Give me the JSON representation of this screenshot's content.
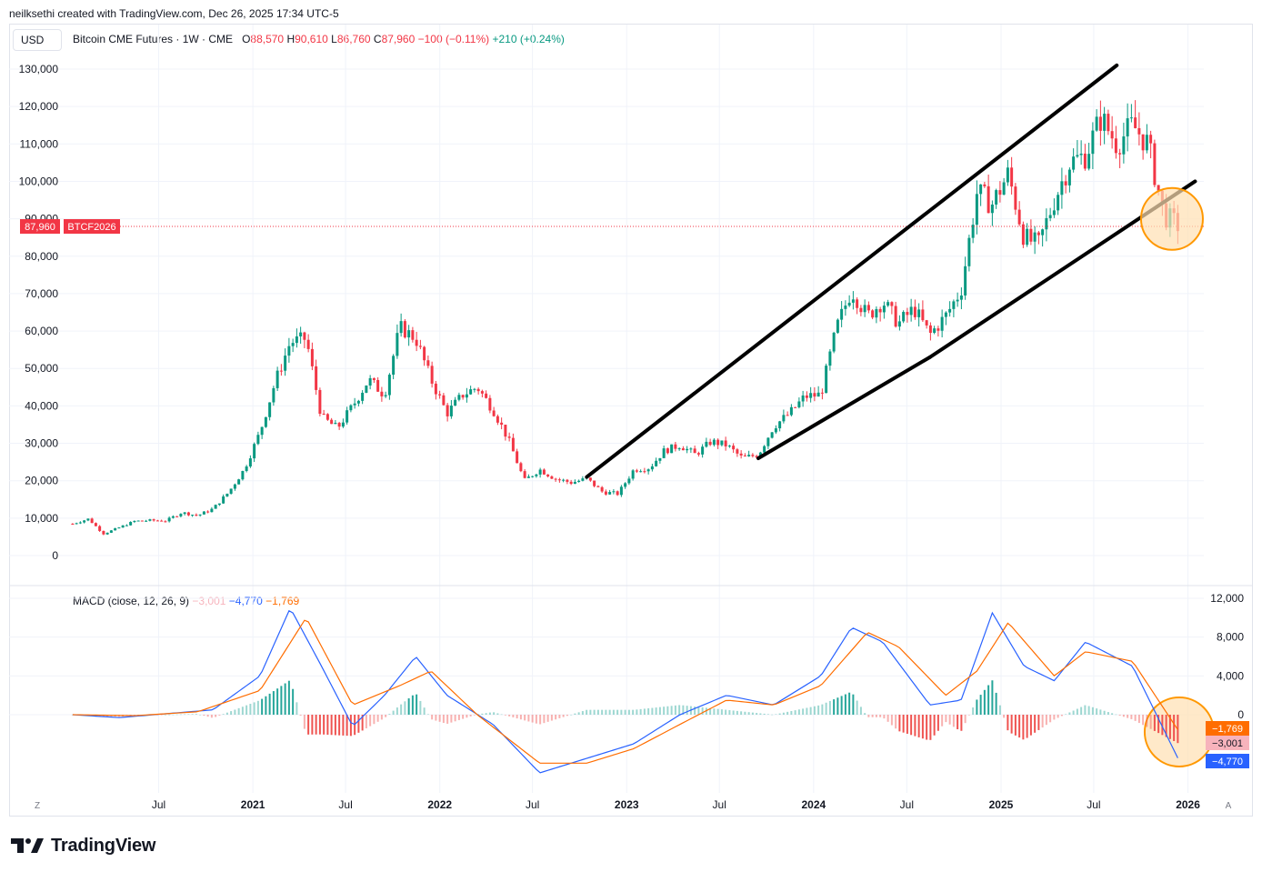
{
  "header": {
    "credit": "neilksethi created with TradingView.com, Dec 26, 2025 17:34 UTC-5"
  },
  "toolbar": {
    "currency": "USD",
    "corner_left": "Z",
    "corner_right": "A"
  },
  "legend": {
    "title": "Bitcoin CME Futures · 1W · CME",
    "o_label": "O",
    "o_value": "88,570",
    "h_label": "H",
    "h_value": "90,610",
    "l_label": "L",
    "l_value": "86,760",
    "c_label": "C",
    "c_value": "87,960",
    "change": "−100 (−0.11%)",
    "change2": "+210 (+0.24%)"
  },
  "macd_legend": {
    "title": "MACD (close, 12, 26, 9)",
    "hist": "−3,001",
    "macd": "−4,770",
    "signal": "−1,769"
  },
  "footer": {
    "brand": "TradingView"
  },
  "colors": {
    "up": "#089981",
    "down": "#f23645",
    "macd": "#2962ff",
    "signal": "#ff6d00",
    "hist_up": "#26a69a",
    "hist_down": "#ef5350",
    "highlight": "#ffe0b2",
    "highlight_border": "#ff9800"
  },
  "chart_data": [
    {
      "type": "candlestick",
      "title": "Bitcoin CME Futures · 1W · CME",
      "ylim": [
        -5000,
        138000
      ],
      "y_ticks": [
        0,
        10000,
        20000,
        30000,
        40000,
        50000,
        60000,
        70000,
        80000,
        90000,
        100000,
        110000,
        120000,
        130000
      ],
      "y_tick_labels": [
        "0",
        "10,000",
        "20,000",
        "30,000",
        "40,000",
        "50,000",
        "60,000",
        "70,000",
        "80,000",
        "90,000",
        "100,000",
        "110,000",
        "120,000",
        "130,000"
      ],
      "last_price": 87960,
      "last_price_label": "87,960",
      "symbol_label": "BTCF2026",
      "x_labels": [
        {
          "date": "2020-07",
          "label": "Jul"
        },
        {
          "date": "2021-01",
          "label": "2021"
        },
        {
          "date": "2021-07",
          "label": "Jul"
        },
        {
          "date": "2022-01",
          "label": "2022"
        },
        {
          "date": "2022-07",
          "label": "Jul"
        },
        {
          "date": "2023-01",
          "label": "2023"
        },
        {
          "date": "2023-07",
          "label": "Jul"
        },
        {
          "date": "2024-01",
          "label": "2024"
        },
        {
          "date": "2024-07",
          "label": "Jul"
        },
        {
          "date": "2025-01",
          "label": "2025"
        },
        {
          "date": "2025-07",
          "label": "Jul"
        },
        {
          "date": "2026-01",
          "label": "2026"
        }
      ],
      "price_path": [
        [
          "2020-01",
          8500
        ],
        [
          "2020-02",
          9800
        ],
        [
          "2020-03",
          5800
        ],
        [
          "2020-04",
          7500
        ],
        [
          "2020-05",
          9200
        ],
        [
          "2020-06",
          9400
        ],
        [
          "2020-07",
          9300
        ],
        [
          "2020-08",
          11500
        ],
        [
          "2020-09",
          10700
        ],
        [
          "2020-10",
          12500
        ],
        [
          "2020-11",
          17000
        ],
        [
          "2020-12",
          23000
        ],
        [
          "2021-01",
          33000
        ],
        [
          "2021-02",
          47000
        ],
        [
          "2021-03",
          57000
        ],
        [
          "2021-04",
          58000
        ],
        [
          "2021-05",
          37000
        ],
        [
          "2021-06",
          34000
        ],
        [
          "2021-07",
          40000
        ],
        [
          "2021-08",
          47000
        ],
        [
          "2021-09",
          43000
        ],
        [
          "2021-10",
          61000
        ],
        [
          "2021-11",
          58000
        ],
        [
          "2021-12",
          47000
        ],
        [
          "2022-01",
          38000
        ],
        [
          "2022-02",
          43000
        ],
        [
          "2022-03",
          45000
        ],
        [
          "2022-04",
          39000
        ],
        [
          "2022-05",
          31000
        ],
        [
          "2022-06",
          20000
        ],
        [
          "2022-07",
          23000
        ],
        [
          "2022-08",
          20500
        ],
        [
          "2022-09",
          19500
        ],
        [
          "2022-10",
          20500
        ],
        [
          "2022-11",
          17000
        ],
        [
          "2022-12",
          16500
        ],
        [
          "2023-01",
          23000
        ],
        [
          "2023-02",
          23500
        ],
        [
          "2023-03",
          28000
        ],
        [
          "2023-04",
          29500
        ],
        [
          "2023-05",
          27000
        ],
        [
          "2023-06",
          30500
        ],
        [
          "2023-07",
          29500
        ],
        [
          "2023-08",
          26000
        ],
        [
          "2023-09",
          27000
        ],
        [
          "2023-10",
          34500
        ],
        [
          "2023-11",
          38000
        ],
        [
          "2023-12",
          42500
        ],
        [
          "2024-01",
          43000
        ],
        [
          "2024-02",
          61000
        ],
        [
          "2024-03",
          71000
        ],
        [
          "2024-04",
          64000
        ],
        [
          "2024-05",
          68000
        ],
        [
          "2024-06",
          62000
        ],
        [
          "2024-07",
          66000
        ],
        [
          "2024-08",
          59000
        ],
        [
          "2024-09",
          64000
        ],
        [
          "2024-10",
          71000
        ],
        [
          "2024-11",
          97000
        ],
        [
          "2024-12",
          94000
        ],
        [
          "2025-01",
          102000
        ],
        [
          "2025-02",
          85000
        ],
        [
          "2025-03",
          83000
        ],
        [
          "2025-04",
          95000
        ],
        [
          "2025-05",
          105000
        ],
        [
          "2025-06",
          107000
        ],
        [
          "2025-07",
          117000
        ],
        [
          "2025-08",
          110000
        ],
        [
          "2025-09",
          115000
        ],
        [
          "2025-10",
          110000
        ],
        [
          "2025-11",
          91000
        ],
        [
          "2025-12",
          87960
        ]
      ],
      "trendlines": [
        {
          "name": "channel-upper",
          "from": [
            "2022-10",
            21000
          ],
          "to": [
            "2025-08",
            131000
          ]
        },
        {
          "name": "channel-lower-a",
          "from": [
            "2023-09",
            26000
          ],
          "to": [
            "2024-08",
            53000
          ]
        },
        {
          "name": "channel-lower-b",
          "from": [
            "2024-08",
            53000
          ],
          "to": [
            "2026-01",
            100000
          ]
        }
      ],
      "highlight_circle": {
        "date": "2025-12",
        "value": 89000
      }
    },
    {
      "type": "macd",
      "title": "MACD (close, 12, 26, 9)",
      "ylim": [
        -7500,
        12500
      ],
      "y_ticks": [
        0,
        4000,
        8000,
        12000
      ],
      "y_tick_labels": [
        "0",
        "4,000",
        "8,000",
        "12,000"
      ],
      "last_macd": -4770,
      "last_macd_label": "−4,770",
      "last_signal": -1769,
      "last_signal_label": "−1,769",
      "last_hist": -3001,
      "last_hist_label": "−3,001",
      "macd_path": [
        [
          "2020-01",
          0
        ],
        [
          "2020-04",
          -300
        ],
        [
          "2020-07",
          100
        ],
        [
          "2020-10",
          500
        ],
        [
          "2021-01",
          4000
        ],
        [
          "2021-03",
          11000
        ],
        [
          "2021-05",
          5000
        ],
        [
          "2021-07",
          -1200
        ],
        [
          "2021-09",
          2000
        ],
        [
          "2021-11",
          6000
        ],
        [
          "2022-01",
          2000
        ],
        [
          "2022-04",
          -1000
        ],
        [
          "2022-07",
          -6000
        ],
        [
          "2022-10",
          -4500
        ],
        [
          "2023-01",
          -3000
        ],
        [
          "2023-04",
          0
        ],
        [
          "2023-07",
          2000
        ],
        [
          "2023-10",
          1000
        ],
        [
          "2024-01",
          4000
        ],
        [
          "2024-03",
          9000
        ],
        [
          "2024-05",
          7500
        ],
        [
          "2024-08",
          1000
        ],
        [
          "2024-10",
          1500
        ],
        [
          "2024-12",
          10500
        ],
        [
          "2025-02",
          5000
        ],
        [
          "2025-04",
          3500
        ],
        [
          "2025-06",
          7500
        ],
        [
          "2025-09",
          5000
        ],
        [
          "2025-12",
          -4770
        ]
      ],
      "signal_path": [
        [
          "2020-01",
          0
        ],
        [
          "2020-05",
          -100
        ],
        [
          "2020-09",
          300
        ],
        [
          "2021-01",
          2500
        ],
        [
          "2021-04",
          10000
        ],
        [
          "2021-07",
          1000
        ],
        [
          "2021-10",
          3000
        ],
        [
          "2021-12",
          4500
        ],
        [
          "2022-03",
          0
        ],
        [
          "2022-07",
          -5000
        ],
        [
          "2022-10",
          -5000
        ],
        [
          "2023-01",
          -3500
        ],
        [
          "2023-04",
          -1000
        ],
        [
          "2023-07",
          1500
        ],
        [
          "2023-10",
          1000
        ],
        [
          "2024-01",
          3000
        ],
        [
          "2024-04",
          8500
        ],
        [
          "2024-06",
          7000
        ],
        [
          "2024-09",
          2000
        ],
        [
          "2024-11",
          4500
        ],
        [
          "2025-01",
          9500
        ],
        [
          "2025-04",
          4000
        ],
        [
          "2025-06",
          6500
        ],
        [
          "2025-09",
          5500
        ],
        [
          "2025-12",
          -1769
        ]
      ]
    }
  ]
}
